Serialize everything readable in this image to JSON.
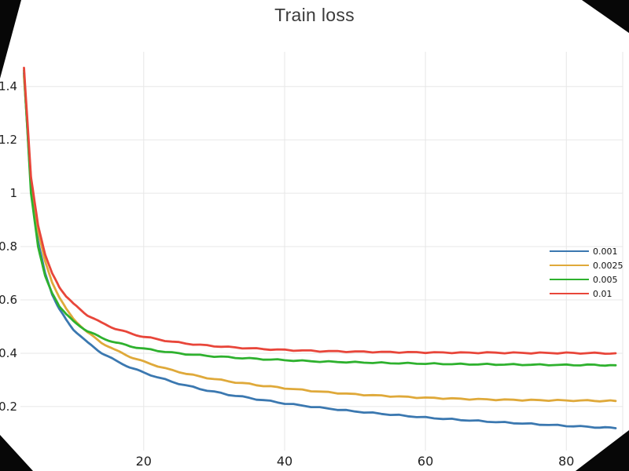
{
  "page": {
    "background": "#ffffff",
    "corner_artifact_color": "#070707"
  },
  "chart_data": {
    "type": "line",
    "title": "Train loss",
    "xlabel": "",
    "ylabel": "",
    "xlim": [
      2.5,
      88
    ],
    "ylim": [
      0.035,
      1.53
    ],
    "xticks": [
      20,
      40,
      60,
      80
    ],
    "xtick_labels": [
      "20",
      "40",
      "60",
      "80"
    ],
    "yticks": [
      0.2,
      0.4,
      0.6,
      0.8,
      1.0,
      1.2,
      1.4
    ],
    "ytick_labels": [
      "0.2",
      "0.4",
      "0.6",
      "0.8",
      "1",
      "1.2",
      "1.4"
    ],
    "grid": true,
    "grid_color": "#e7e7e7",
    "legend_position": "right",
    "x": [
      3,
      4,
      5,
      6,
      7,
      8,
      9,
      10,
      12,
      14,
      16,
      18,
      20,
      24,
      28,
      32,
      36,
      40,
      45,
      50,
      55,
      60,
      65,
      70,
      75,
      80,
      84,
      87
    ],
    "series": [
      {
        "name": "0.001",
        "color": "#3b78b0",
        "values": [
          1.45,
          1.02,
          0.82,
          0.7,
          0.62,
          0.565,
          0.525,
          0.49,
          0.44,
          0.402,
          0.372,
          0.348,
          0.327,
          0.293,
          0.266,
          0.245,
          0.228,
          0.212,
          0.196,
          0.182,
          0.17,
          0.159,
          0.15,
          0.142,
          0.135,
          0.128,
          0.123,
          0.119
        ]
      },
      {
        "name": "0.0025",
        "color": "#dfa93a",
        "values": [
          1.44,
          1.05,
          0.86,
          0.745,
          0.665,
          0.61,
          0.565,
          0.53,
          0.478,
          0.44,
          0.411,
          0.388,
          0.368,
          0.336,
          0.312,
          0.295,
          0.281,
          0.269,
          0.256,
          0.246,
          0.239,
          0.233,
          0.229,
          0.226,
          0.224,
          0.223,
          0.222,
          0.221
        ]
      },
      {
        "name": "0.005",
        "color": "#2eb12e",
        "values": [
          1.46,
          1.0,
          0.8,
          0.69,
          0.625,
          0.578,
          0.545,
          0.52,
          0.483,
          0.458,
          0.44,
          0.427,
          0.417,
          0.402,
          0.392,
          0.385,
          0.379,
          0.374,
          0.369,
          0.366,
          0.363,
          0.361,
          0.359,
          0.358,
          0.357,
          0.356,
          0.356,
          0.355
        ]
      },
      {
        "name": "0.01",
        "color": "#e8463a",
        "values": [
          1.47,
          1.06,
          0.88,
          0.77,
          0.7,
          0.65,
          0.613,
          0.585,
          0.543,
          0.514,
          0.492,
          0.475,
          0.462,
          0.443,
          0.431,
          0.423,
          0.417,
          0.412,
          0.408,
          0.406,
          0.404,
          0.403,
          0.402,
          0.402,
          0.401,
          0.401,
          0.4,
          0.4
        ]
      }
    ]
  }
}
